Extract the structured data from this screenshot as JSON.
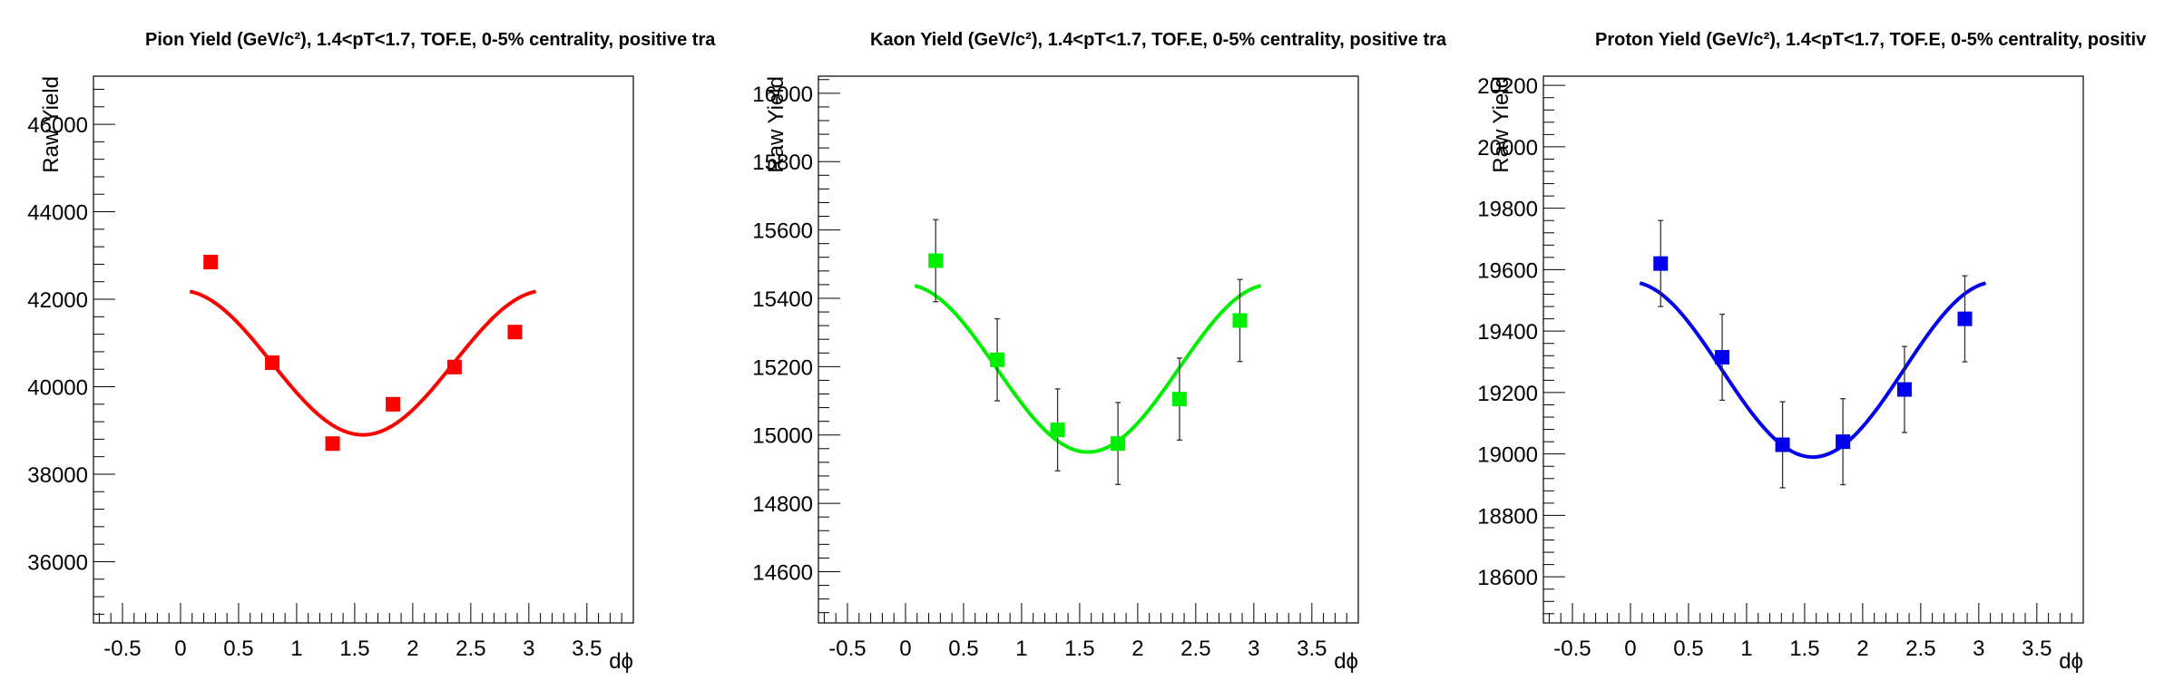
{
  "chart_data": [
    {
      "type": "scatter",
      "title": "Pion Yield (GeV/c²), 1.4<pT<1.7, TOF.E, 0-5% centrality, positive tra",
      "xlabel": "dϕ",
      "ylabel": "Raw Yield",
      "xlim": [
        -0.75,
        3.9
      ],
      "ylim": [
        34600,
        47100
      ],
      "x_ticks": [
        "-0.5",
        "0",
        "0.5",
        "1",
        "1.5",
        "2",
        "2.5",
        "3",
        "3.5"
      ],
      "y_ticks": [
        "36000",
        "38000",
        "40000",
        "42000",
        "44000",
        "46000"
      ],
      "color": "#ff0000",
      "series": [
        {
          "x": [
            0.26,
            0.79,
            1.31,
            1.83,
            2.36,
            2.88
          ],
          "y": [
            42850,
            40550,
            38700,
            39600,
            40450,
            41250
          ],
          "err": [
            150,
            150,
            150,
            150,
            150,
            150
          ]
        }
      ],
      "fit": {
        "x_range": [
          0.08,
          3.06
        ],
        "mean": 40550,
        "amplitude": 1650
      }
    },
    {
      "type": "scatter",
      "title": "Kaon Yield (GeV/c²), 1.4<pT<1.7, TOF.E, 0-5% centrality, positive tra",
      "xlabel": "dϕ",
      "ylabel": "Raw Yield",
      "xlim": [
        -0.75,
        3.9
      ],
      "ylim": [
        14450,
        16050
      ],
      "x_ticks": [
        "-0.5",
        "0",
        "0.5",
        "1",
        "1.5",
        "2",
        "2.5",
        "3",
        "3.5"
      ],
      "y_ticks": [
        "14600",
        "14800",
        "15000",
        "15200",
        "15400",
        "15600",
        "15800",
        "16000"
      ],
      "color": "#00ee00",
      "series": [
        {
          "x": [
            0.26,
            0.79,
            1.31,
            1.83,
            2.36,
            2.88
          ],
          "y": [
            15510,
            15220,
            15015,
            14975,
            15105,
            15335
          ],
          "err": [
            120,
            120,
            120,
            120,
            120,
            120
          ]
        }
      ],
      "fit": {
        "x_range": [
          0.08,
          3.06
        ],
        "mean": 15195,
        "amplitude": 245
      }
    },
    {
      "type": "scatter",
      "title": "Proton Yield (GeV/c²), 1.4<pT<1.7, TOF.E, 0-5% centrality, positiv",
      "xlabel": "dϕ",
      "ylabel": "Raw Yield",
      "xlim": [
        -0.75,
        3.9
      ],
      "ylim": [
        18450,
        20230
      ],
      "x_ticks": [
        "-0.5",
        "0",
        "0.5",
        "1",
        "1.5",
        "2",
        "2.5",
        "3",
        "3.5"
      ],
      "y_ticks": [
        "18600",
        "18800",
        "19000",
        "19200",
        "19400",
        "19600",
        "19800",
        "20000",
        "20200"
      ],
      "color": "#0000ee",
      "series": [
        {
          "x": [
            0.26,
            0.79,
            1.31,
            1.83,
            2.36,
            2.88
          ],
          "y": [
            19620,
            19315,
            19030,
            19040,
            19210,
            19440
          ],
          "err": [
            140,
            140,
            140,
            140,
            140,
            140
          ]
        }
      ],
      "fit": {
        "x_range": [
          0.08,
          3.06
        ],
        "mean": 19275,
        "amplitude": 285
      }
    }
  ]
}
